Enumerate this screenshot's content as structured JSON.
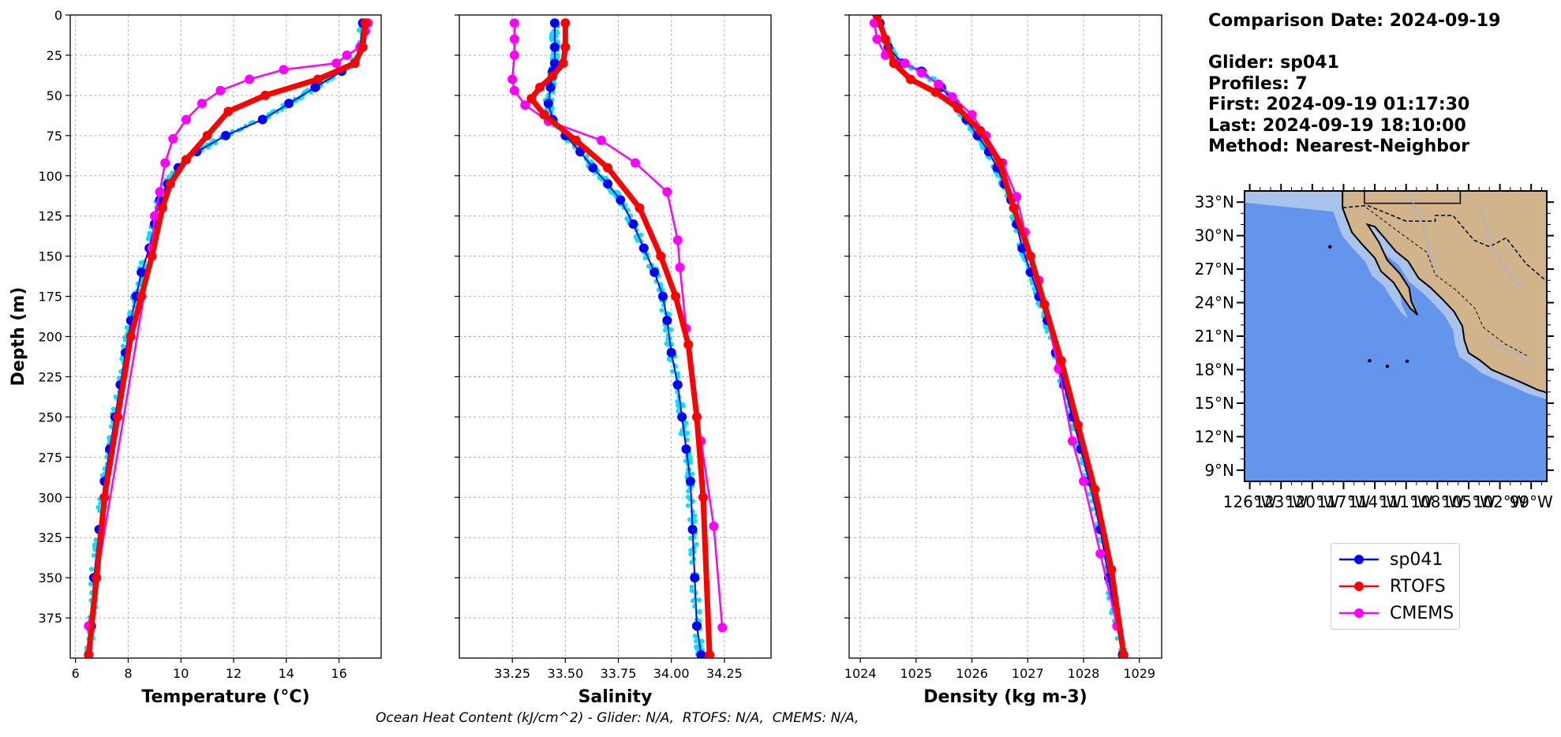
{
  "info": {
    "comparison_date": "Comparison Date: 2024-09-19",
    "glider": "Glider: sp041",
    "profiles": "Profiles: 7",
    "first": "First: 2024-09-19 01:17:30",
    "last": "Last: 2024-09-19 18:10:00",
    "method": "Method: Nearest-Neighbor"
  },
  "legend": [
    {
      "label": "sp041",
      "color": "#0000ff"
    },
    {
      "label": "RTOFS",
      "color": "#ff0000"
    },
    {
      "label": "CMEMS",
      "color": "#ff00ff"
    }
  ],
  "footer": "Ocean Heat Content (kJ/cm^2) - Glider: N/A,  RTOFS: N/A,  CMEMS: N/A,",
  "colors": {
    "glider": "#0000ff",
    "rtofs": "#ff0000",
    "cmems": "#ff00ff",
    "scatter": "#00e5ee",
    "ocean": "#6495ed",
    "shelf": "#a9c3ea",
    "land": "#d2b48c"
  },
  "chart_data": [
    {
      "type": "line",
      "xlabel": "Temperature (°C)",
      "ylabel": "Depth (m)",
      "xlim": [
        5.8,
        17.6
      ],
      "ylim": [
        400,
        0
      ],
      "xticks": [
        6,
        8,
        10,
        12,
        14,
        16
      ],
      "yticks": [
        0,
        25,
        50,
        75,
        100,
        125,
        150,
        175,
        200,
        225,
        250,
        275,
        300,
        325,
        350,
        375
      ],
      "grid": true,
      "series": [
        {
          "name": "sp041",
          "x": [
            16.9,
            16.8,
            16.6,
            16.1,
            15.1,
            14.1,
            13.1,
            11.7,
            10.6,
            9.9,
            9.5,
            9.2,
            9.0,
            8.8,
            8.5,
            8.3,
            8.1,
            7.9,
            7.7,
            7.5,
            7.3,
            7.1,
            6.9,
            6.7,
            6.6,
            6.5
          ],
          "y": [
            5,
            20,
            30,
            35,
            45,
            55,
            65,
            75,
            85,
            95,
            105,
            115,
            130,
            145,
            160,
            175,
            190,
            210,
            230,
            250,
            270,
            290,
            320,
            350,
            380,
            398
          ]
        },
        {
          "name": "RTOFS",
          "x": [
            17.0,
            16.9,
            16.6,
            15.2,
            13.2,
            11.8,
            11.0,
            10.2,
            9.6,
            9.3,
            8.9,
            8.5,
            8.1,
            7.6,
            7.1,
            6.8,
            6.5
          ],
          "y": [
            5,
            20,
            30,
            40,
            50,
            60,
            75,
            90,
            105,
            120,
            150,
            175,
            200,
            250,
            300,
            350,
            398
          ]
        },
        {
          "name": "CMEMS",
          "x": [
            17.1,
            17.0,
            16.8,
            16.3,
            15.9,
            13.9,
            12.6,
            11.5,
            10.8,
            10.2,
            9.7,
            9.4,
            9.2,
            9.0,
            8.9,
            6.5
          ],
          "y": [
            5,
            10,
            20,
            25,
            30,
            34,
            40,
            47,
            55,
            65,
            77,
            92,
            110,
            125,
            145,
            380
          ]
        }
      ]
    },
    {
      "type": "line",
      "xlabel": "Salinity",
      "xlim": [
        33.0,
        34.47
      ],
      "ylim": [
        400,
        0
      ],
      "xticks": [
        33.25,
        33.5,
        33.75,
        34.0,
        34.25
      ],
      "grid": true,
      "series": [
        {
          "name": "sp041",
          "x": [
            33.45,
            33.45,
            33.45,
            33.44,
            33.43,
            33.42,
            33.44,
            33.5,
            33.57,
            33.63,
            33.7,
            33.76,
            33.82,
            33.87,
            33.92,
            33.96,
            33.98,
            34.0,
            34.03,
            34.05,
            34.07,
            34.09,
            34.1,
            34.11,
            34.12,
            34.14
          ],
          "y": [
            5,
            20,
            30,
            35,
            45,
            55,
            65,
            75,
            85,
            95,
            105,
            115,
            130,
            145,
            160,
            175,
            190,
            210,
            230,
            250,
            270,
            290,
            320,
            350,
            380,
            398
          ]
        },
        {
          "name": "RTOFS",
          "x": [
            33.5,
            33.5,
            33.49,
            33.44,
            33.38,
            33.34,
            33.4,
            33.55,
            33.7,
            33.85,
            33.95,
            34.02,
            34.08,
            34.12,
            34.15,
            34.18
          ],
          "y": [
            5,
            20,
            30,
            38,
            45,
            52,
            62,
            78,
            95,
            120,
            150,
            175,
            205,
            250,
            300,
            398
          ]
        },
        {
          "name": "CMEMS",
          "x": [
            33.26,
            33.26,
            33.26,
            33.25,
            33.26,
            33.31,
            33.42,
            33.67,
            33.83,
            33.98,
            34.03,
            34.04,
            34.07,
            34.14,
            34.2,
            34.24
          ],
          "y": [
            5,
            15,
            25,
            40,
            47,
            56,
            66,
            78,
            92,
            110,
            140,
            157,
            195,
            265,
            318,
            381
          ]
        }
      ]
    },
    {
      "type": "line",
      "xlabel": "Density (kg m-3)",
      "xlim": [
        1023.8,
        1029.4
      ],
      "ylim": [
        400,
        0
      ],
      "xticks": [
        1024,
        1025,
        1026,
        1027,
        1028,
        1029
      ],
      "grid": true,
      "series": [
        {
          "name": "sp041",
          "x": [
            1024.35,
            1024.5,
            1024.75,
            1025.1,
            1025.45,
            1025.7,
            1025.9,
            1026.1,
            1026.3,
            1026.45,
            1026.58,
            1026.7,
            1026.8,
            1026.9,
            1027.05,
            1027.2,
            1027.35,
            1027.5,
            1027.65,
            1027.8,
            1027.95,
            1028.1,
            1028.3,
            1028.45,
            1028.6,
            1028.7
          ],
          "y": [
            5,
            20,
            30,
            35,
            45,
            55,
            65,
            75,
            85,
            95,
            105,
            115,
            130,
            145,
            160,
            175,
            190,
            210,
            230,
            250,
            270,
            290,
            320,
            350,
            380,
            398
          ]
        },
        {
          "name": "RTOFS",
          "x": [
            1024.3,
            1024.45,
            1024.6,
            1024.9,
            1025.35,
            1025.75,
            1026.15,
            1026.5,
            1026.75,
            1027.05,
            1027.3,
            1027.6,
            1027.9,
            1028.2,
            1028.5,
            1028.72
          ],
          "y": [
            0,
            15,
            30,
            40,
            48,
            58,
            72,
            92,
            120,
            150,
            180,
            215,
            255,
            295,
            345,
            398
          ]
        },
        {
          "name": "CMEMS",
          "x": [
            1024.25,
            1024.3,
            1024.45,
            1024.8,
            1025.1,
            1025.4,
            1025.65,
            1026.0,
            1026.25,
            1026.55,
            1026.8,
            1026.95,
            1027.2,
            1027.55,
            1027.8,
            1028.0,
            1028.3,
            1028.6
          ],
          "y": [
            5,
            15,
            25,
            30,
            36,
            43,
            51,
            62,
            75,
            92,
            113,
            135,
            165,
            220,
            265,
            290,
            335,
            380
          ]
        }
      ]
    }
  ],
  "map": {
    "lat_labels": [
      "33°N",
      "30°N",
      "27°N",
      "24°N",
      "21°N",
      "18°N",
      "15°N",
      "12°N",
      "9°N"
    ],
    "lon_labels": [
      "126°W",
      "123°W",
      "120°W",
      "117°W",
      "114°W",
      "111°W",
      "108°W",
      "105°W",
      "102°W",
      "99°W"
    ]
  }
}
